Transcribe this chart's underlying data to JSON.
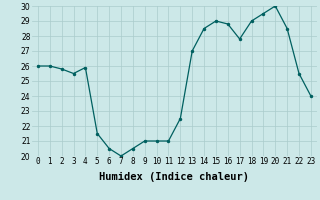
{
  "x": [
    0,
    1,
    2,
    3,
    4,
    5,
    6,
    7,
    8,
    9,
    10,
    11,
    12,
    13,
    14,
    15,
    16,
    17,
    18,
    19,
    20,
    21,
    22,
    23
  ],
  "y": [
    26.0,
    26.0,
    25.8,
    25.5,
    25.9,
    21.5,
    20.5,
    20.0,
    20.5,
    21.0,
    21.0,
    21.0,
    22.5,
    27.0,
    28.5,
    29.0,
    28.8,
    27.8,
    29.0,
    29.5,
    30.0,
    28.5,
    25.5,
    24.0
  ],
  "xlabel": "Humidex (Indice chaleur)",
  "xlim": [
    -0.5,
    23.5
  ],
  "ylim": [
    20,
    30
  ],
  "yticks": [
    20,
    21,
    22,
    23,
    24,
    25,
    26,
    27,
    28,
    29,
    30
  ],
  "xticks": [
    0,
    1,
    2,
    3,
    4,
    5,
    6,
    7,
    8,
    9,
    10,
    11,
    12,
    13,
    14,
    15,
    16,
    17,
    18,
    19,
    20,
    21,
    22,
    23
  ],
  "line_color": "#006060",
  "marker_size": 2.5,
  "bg_color": "#cce8e8",
  "grid_color": "#aacccc",
  "tick_fontsize": 5.5,
  "xlabel_fontsize": 7.5
}
